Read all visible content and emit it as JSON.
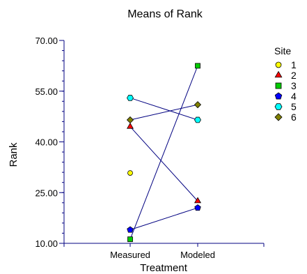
{
  "chart_data": {
    "type": "line",
    "title": "Means of Rank",
    "xlabel": "Treatment",
    "ylabel": "Rank",
    "categories": [
      "Measured",
      "Modeled"
    ],
    "ylim": [
      10,
      70
    ],
    "yticks": [
      "10.00",
      "25.00",
      "40.00",
      "55.00",
      "70.00"
    ],
    "ytick_values": [
      10,
      25,
      40,
      55,
      70
    ],
    "line_color": "#000080",
    "legend": {
      "title": "Site",
      "placement": "right"
    },
    "series": [
      {
        "name": "1",
        "marker": "circle",
        "color": "#ffff00",
        "values": [
          30.8,
          null
        ]
      },
      {
        "name": "2",
        "marker": "triangle",
        "color": "#ff0000",
        "values": [
          44.5,
          22.5
        ]
      },
      {
        "name": "3",
        "marker": "square",
        "color": "#00cc00",
        "values": [
          11.2,
          62.5
        ]
      },
      {
        "name": "4",
        "marker": "pentagon",
        "color": "#0000ff",
        "values": [
          14.0,
          20.5
        ]
      },
      {
        "name": "5",
        "marker": "hexagon",
        "color": "#00ffff",
        "values": [
          53.0,
          46.5
        ]
      },
      {
        "name": "6",
        "marker": "diamond",
        "color": "#808000",
        "values": [
          46.5,
          51.0
        ]
      }
    ]
  }
}
